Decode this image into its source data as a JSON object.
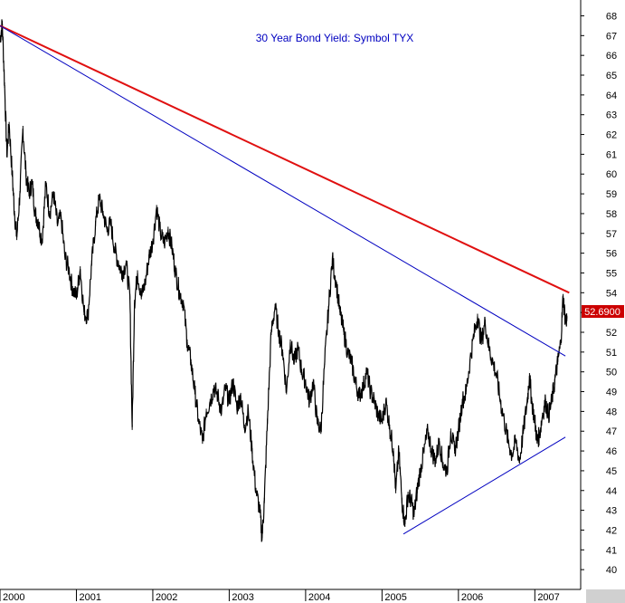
{
  "chart_data": {
    "type": "line",
    "title": "30 Year Bond Yield: Symbol TYX",
    "xlabel": "",
    "ylabel": "",
    "x_tick_labels": [
      "2000",
      "2001",
      "2002",
      "2003",
      "2004",
      "2005",
      "2006",
      "2007"
    ],
    "y_tick_labels": [
      "40",
      "41",
      "42",
      "43",
      "44",
      "45",
      "46",
      "47",
      "48",
      "49",
      "50",
      "51",
      "52",
      "53",
      "54",
      "55",
      "56",
      "57",
      "58",
      "59",
      "60",
      "61",
      "62",
      "63",
      "64",
      "65",
      "66",
      "67",
      "68"
    ],
    "ylim": [
      39,
      68.8
    ],
    "xlim": [
      2000.0,
      2007.6
    ],
    "y_axis_side": "right",
    "grid": false,
    "last_value_label": "52.6900",
    "series": [
      {
        "points": [
          [
            2000.0,
            66.8
          ],
          [
            2000.03,
            67.6
          ],
          [
            2000.06,
            64.5
          ],
          [
            2000.09,
            61.0
          ],
          [
            2000.12,
            62.5
          ],
          [
            2000.16,
            60.0
          ],
          [
            2000.19,
            58.0
          ],
          [
            2000.22,
            56.8
          ],
          [
            2000.26,
            59.0
          ],
          [
            2000.3,
            62.3
          ],
          [
            2000.34,
            60.0
          ],
          [
            2000.38,
            59.0
          ],
          [
            2000.42,
            59.6
          ],
          [
            2000.46,
            58.0
          ],
          [
            2000.5,
            57.6
          ],
          [
            2000.55,
            56.6
          ],
          [
            2000.6,
            59.5
          ],
          [
            2000.65,
            58.0
          ],
          [
            2000.7,
            59.0
          ],
          [
            2000.75,
            57.5
          ],
          [
            2000.8,
            57.8
          ],
          [
            2000.85,
            55.8
          ],
          [
            2000.9,
            55.2
          ],
          [
            2000.95,
            54.2
          ],
          [
            2001.0,
            53.8
          ],
          [
            2001.05,
            55.2
          ],
          [
            2001.1,
            53.0
          ],
          [
            2001.15,
            52.8
          ],
          [
            2001.2,
            55.5
          ],
          [
            2001.25,
            57.5
          ],
          [
            2001.3,
            58.8
          ],
          [
            2001.35,
            58.0
          ],
          [
            2001.4,
            57.2
          ],
          [
            2001.45,
            57.5
          ],
          [
            2001.5,
            56.2
          ],
          [
            2001.55,
            55.5
          ],
          [
            2001.6,
            55.0
          ],
          [
            2001.65,
            55.5
          ],
          [
            2001.7,
            53.8
          ],
          [
            2001.73,
            47.2
          ],
          [
            2001.76,
            53.5
          ],
          [
            2001.8,
            55.0
          ],
          [
            2001.85,
            53.8
          ],
          [
            2001.9,
            54.5
          ],
          [
            2001.95,
            55.8
          ],
          [
            2002.0,
            56.6
          ],
          [
            2002.05,
            58.3
          ],
          [
            2002.1,
            57.0
          ],
          [
            2002.15,
            56.5
          ],
          [
            2002.2,
            57.2
          ],
          [
            2002.25,
            56.3
          ],
          [
            2002.3,
            55.0
          ],
          [
            2002.35,
            54.0
          ],
          [
            2002.4,
            53.5
          ],
          [
            2002.45,
            51.5
          ],
          [
            2002.5,
            50.5
          ],
          [
            2002.55,
            49.0
          ],
          [
            2002.6,
            47.5
          ],
          [
            2002.65,
            46.5
          ],
          [
            2002.7,
            48.0
          ],
          [
            2002.75,
            48.5
          ],
          [
            2002.8,
            49.2
          ],
          [
            2002.85,
            48.8
          ],
          [
            2002.9,
            48.0
          ],
          [
            2002.95,
            49.2
          ],
          [
            2003.0,
            48.5
          ],
          [
            2003.05,
            49.5
          ],
          [
            2003.1,
            48.2
          ],
          [
            2003.15,
            48.8
          ],
          [
            2003.2,
            47.2
          ],
          [
            2003.25,
            48.0
          ],
          [
            2003.3,
            46.0
          ],
          [
            2003.35,
            44.0
          ],
          [
            2003.4,
            43.0
          ],
          [
            2003.43,
            41.6
          ],
          [
            2003.46,
            43.5
          ],
          [
            2003.5,
            47.5
          ],
          [
            2003.55,
            52.0
          ],
          [
            2003.6,
            53.3
          ],
          [
            2003.65,
            52.0
          ],
          [
            2003.7,
            51.0
          ],
          [
            2003.75,
            49.0
          ],
          [
            2003.8,
            51.5
          ],
          [
            2003.85,
            50.5
          ],
          [
            2003.9,
            51.2
          ],
          [
            2003.95,
            50.0
          ],
          [
            2004.0,
            49.5
          ],
          [
            2004.05,
            48.5
          ],
          [
            2004.1,
            49.5
          ],
          [
            2004.15,
            47.5
          ],
          [
            2004.2,
            47.0
          ],
          [
            2004.25,
            50.5
          ],
          [
            2004.3,
            53.2
          ],
          [
            2004.35,
            55.7
          ],
          [
            2004.4,
            54.5
          ],
          [
            2004.45,
            53.0
          ],
          [
            2004.5,
            52.0
          ],
          [
            2004.55,
            51.0
          ],
          [
            2004.6,
            50.5
          ],
          [
            2004.65,
            49.5
          ],
          [
            2004.7,
            48.8
          ],
          [
            2004.75,
            49.2
          ],
          [
            2004.8,
            50.0
          ],
          [
            2004.85,
            49.0
          ],
          [
            2004.9,
            48.5
          ],
          [
            2004.95,
            47.8
          ],
          [
            2005.0,
            47.5
          ],
          [
            2005.05,
            48.5
          ],
          [
            2005.1,
            47.2
          ],
          [
            2005.15,
            46.0
          ],
          [
            2005.18,
            44.0
          ],
          [
            2005.22,
            46.0
          ],
          [
            2005.26,
            43.5
          ],
          [
            2005.3,
            42.3
          ],
          [
            2005.34,
            43.8
          ],
          [
            2005.38,
            43.5
          ],
          [
            2005.42,
            42.8
          ],
          [
            2005.46,
            44.0
          ],
          [
            2005.5,
            45.0
          ],
          [
            2005.55,
            46.0
          ],
          [
            2005.6,
            47.0
          ],
          [
            2005.65,
            46.0
          ],
          [
            2005.7,
            45.5
          ],
          [
            2005.75,
            46.5
          ],
          [
            2005.8,
            45.3
          ],
          [
            2005.85,
            45.0
          ],
          [
            2005.9,
            47.0
          ],
          [
            2005.95,
            46.0
          ],
          [
            2006.0,
            47.0
          ],
          [
            2006.05,
            48.5
          ],
          [
            2006.1,
            49.0
          ],
          [
            2006.15,
            50.5
          ],
          [
            2006.2,
            51.8
          ],
          [
            2006.25,
            52.8
          ],
          [
            2006.3,
            51.5
          ],
          [
            2006.35,
            52.5
          ],
          [
            2006.4,
            51.2
          ],
          [
            2006.45,
            50.5
          ],
          [
            2006.5,
            49.8
          ],
          [
            2006.55,
            48.5
          ],
          [
            2006.6,
            47.5
          ],
          [
            2006.65,
            46.5
          ],
          [
            2006.7,
            45.8
          ],
          [
            2006.75,
            46.5
          ],
          [
            2006.8,
            45.5
          ],
          [
            2006.85,
            47.0
          ],
          [
            2006.9,
            48.5
          ],
          [
            2006.93,
            49.8
          ],
          [
            2006.96,
            48.5
          ],
          [
            2007.0,
            47.5
          ],
          [
            2007.03,
            46.5
          ],
          [
            2007.06,
            46.8
          ],
          [
            2007.1,
            47.8
          ],
          [
            2007.14,
            48.5
          ],
          [
            2007.18,
            47.8
          ],
          [
            2007.22,
            48.5
          ],
          [
            2007.26,
            49.5
          ],
          [
            2007.3,
            50.5
          ],
          [
            2007.34,
            51.5
          ],
          [
            2007.37,
            53.8
          ],
          [
            2007.4,
            52.6
          ],
          [
            2007.42,
            52.7
          ]
        ]
      }
    ],
    "trendlines": [
      {
        "color": "#e01010",
        "from": [
          2000.0,
          67.5
        ],
        "to": [
          2007.45,
          54.0
        ]
      },
      {
        "color": "#0000c0",
        "from": [
          2000.0,
          67.5
        ],
        "to": [
          2007.4,
          50.8
        ]
      },
      {
        "color": "#0000c0",
        "from": [
          2005.28,
          41.8
        ],
        "to": [
          2007.4,
          46.7
        ]
      }
    ],
    "colors": {
      "series": "#000000",
      "title": "#0000c0",
      "axis": "#000000",
      "price_tag_background": "#cc0000",
      "price_tag_text": "#ffffff",
      "bottom_right_box": "#d0d0d0"
    }
  }
}
